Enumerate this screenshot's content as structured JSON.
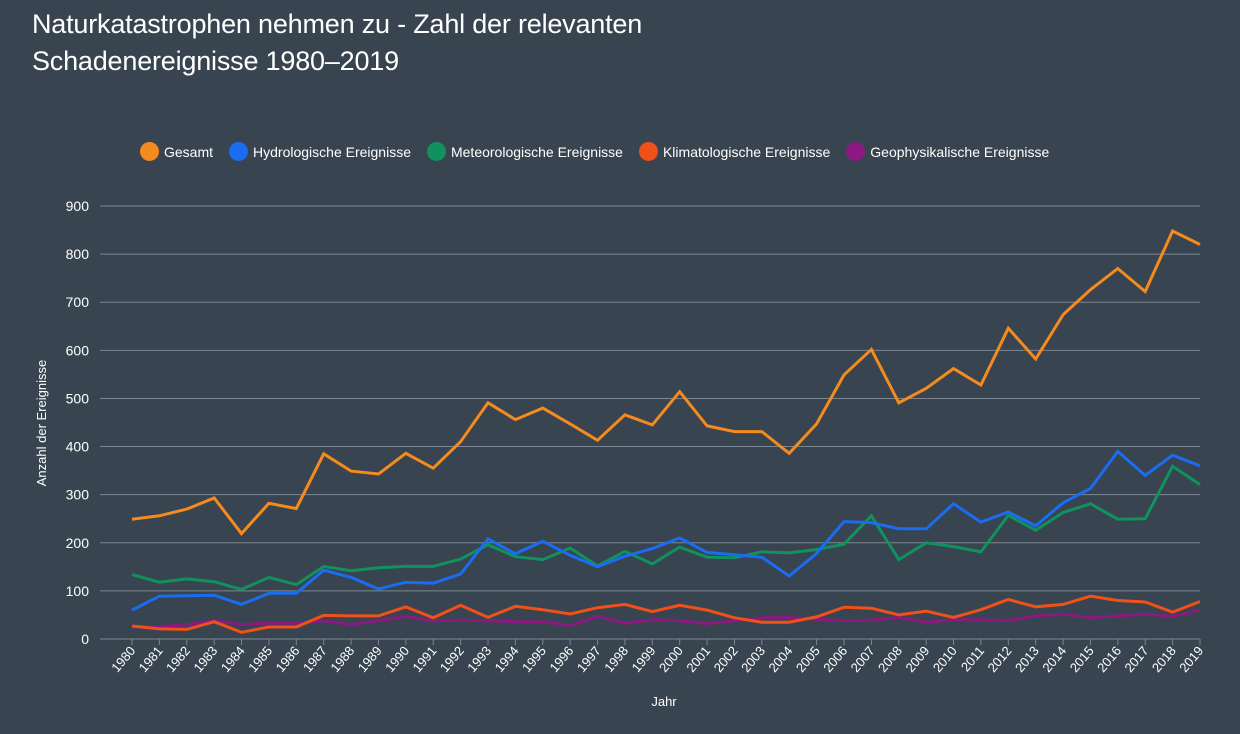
{
  "title_line1": "Naturkatastrophen nehmen zu - Zahl der relevanten",
  "title_line2": "Schadenereignisse 1980–2019",
  "chart_data": {
    "type": "line",
    "title": "Naturkatastrophen nehmen zu - Zahl der relevanten Schadenereignisse 1980–2019",
    "xlabel": "Jahr",
    "ylabel": "Anzahl der Ereignisse",
    "ylim": [
      0,
      900
    ],
    "yticks": [
      0,
      100,
      200,
      300,
      400,
      500,
      600,
      700,
      800,
      900
    ],
    "grid": true,
    "legend_position": "top-left",
    "x": [
      "1980",
      "1981",
      "1982",
      "1983",
      "1984",
      "1985",
      "1986",
      "1987",
      "1988",
      "1989",
      "1990",
      "1991",
      "1992",
      "1993",
      "1994",
      "1995",
      "1996",
      "1997",
      "1998",
      "1999",
      "2000",
      "2001",
      "2002",
      "2003",
      "2004",
      "2005",
      "2006",
      "2007",
      "2008",
      "2009",
      "2010",
      "2011",
      "2012",
      "2013",
      "2014",
      "2015",
      "2016",
      "2017",
      "2018",
      "2019"
    ],
    "series": [
      {
        "name": "Gesamt",
        "color": "#f58a1f",
        "values": [
          249,
          256,
          270,
          293,
          219,
          282,
          271,
          385,
          349,
          343,
          386,
          355,
          410,
          491,
          456,
          480,
          447,
          413,
          466,
          445,
          514,
          443,
          431,
          431,
          386,
          447,
          549,
          602,
          491,
          521,
          562,
          528,
          646,
          582,
          674,
          726,
          770,
          722,
          848,
          820
        ]
      },
      {
        "name": "Hydrologische Ereignisse",
        "color": "#1a6cf0",
        "values": [
          60,
          89,
          90,
          91,
          72,
          95,
          95,
          143,
          128,
          104,
          118,
          116,
          135,
          208,
          177,
          203,
          174,
          150,
          172,
          188,
          210,
          180,
          175,
          170,
          131,
          178,
          244,
          242,
          229,
          229,
          281,
          243,
          264,
          235,
          283,
          313,
          390,
          340,
          382,
          360
        ]
      },
      {
        "name": "Meteorologische Ereignisse",
        "color": "#10915e",
        "values": [
          134,
          118,
          125,
          119,
          103,
          128,
          113,
          151,
          142,
          148,
          151,
          151,
          166,
          196,
          171,
          165,
          189,
          152,
          182,
          156,
          191,
          170,
          169,
          181,
          179,
          186,
          197,
          256,
          165,
          200,
          192,
          181,
          257,
          226,
          263,
          281,
          249,
          250,
          359,
          321
        ]
      },
      {
        "name": "Klimatologische Ereignisse",
        "color": "#f0501a",
        "values": [
          27,
          21,
          20,
          36,
          14,
          25,
          25,
          49,
          48,
          48,
          67,
          44,
          70,
          45,
          68,
          61,
          52,
          65,
          72,
          57,
          70,
          60,
          44,
          35,
          35,
          46,
          66,
          64,
          50,
          58,
          45,
          61,
          82,
          67,
          72,
          89,
          80,
          77,
          56,
          78
        ]
      },
      {
        "name": "Geophysikalische Ereignisse",
        "color": "#8a1a80",
        "values": [
          25,
          26,
          30,
          38,
          30,
          33,
          33,
          38,
          30,
          38,
          47,
          38,
          39,
          38,
          36,
          36,
          28,
          47,
          33,
          40,
          38,
          32,
          38,
          44,
          45,
          41,
          38,
          39,
          45,
          35,
          40,
          40,
          38,
          48,
          52,
          44,
          48,
          52,
          47,
          60
        ]
      }
    ]
  }
}
